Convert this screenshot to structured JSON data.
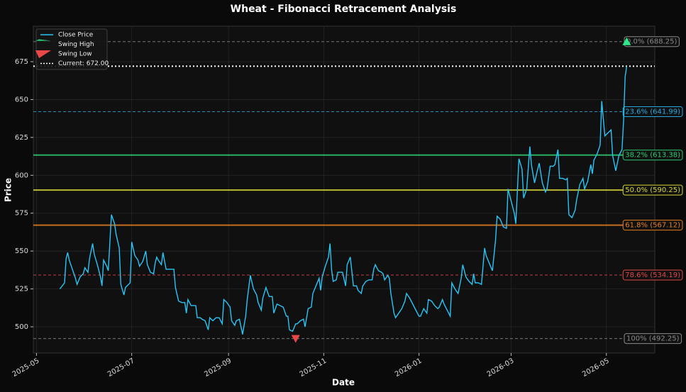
{
  "chart_data": {
    "type": "line",
    "title": "Wheat - Fibonacci Retracement Analysis",
    "x_label": "Date",
    "y_label": "Price",
    "x": [
      20224,
      20227,
      20228,
      20229,
      20230,
      20232,
      20234,
      20235,
      20237,
      20239,
      20240,
      20242,
      20243,
      20245,
      20246,
      20248,
      20250,
      20251,
      20252,
      20254,
      20255,
      20257,
      20259,
      20260,
      20262,
      20263,
      20265,
      20266,
      20269,
      20270,
      20272,
      20274,
      20275,
      20277,
      20279,
      20280,
      20282,
      20284,
      20285,
      20286,
      20287,
      20289,
      20290,
      20292,
      20295,
      20297,
      20298,
      20300,
      20302,
      20304,
      20305,
      20306,
      20308,
      20311,
      20312,
      20314,
      20315,
      20317,
      20319,
      20320,
      20322,
      20324,
      20326,
      20328,
      20329,
      20331,
      20333,
      20334,
      20336,
      20337,
      20339,
      20341,
      20343,
      20344,
      20346,
      20348,
      20350,
      20351,
      20353,
      20354,
      20356,
      20358,
      20360,
      20361,
      20363,
      20365,
      20367,
      20369,
      20370,
      20371,
      20373,
      20375,
      20376,
      20378,
      20380,
      20381,
      20383,
      20385,
      20386,
      20388,
      20390,
      20391,
      20392,
      20394,
      20396,
      20397,
      20398,
      20399,
      20401,
      20402,
      20404,
      20405,
      20407,
      20408,
      20410,
      20412,
      20414,
      20415,
      20417,
      20418,
      20420,
      20422,
      20424,
      20425,
      20426,
      20428,
      20430,
      20431,
      20432,
      20434,
      20435,
      20436,
      20438,
      20439,
      20441,
      20443,
      20445,
      20446,
      20448,
      20450,
      20452,
      20454,
      20455,
      20457,
      20459,
      20460,
      20462,
      20464,
      20466,
      20467,
      20469,
      20470,
      20472,
      20474,
      20475,
      20477,
      20479,
      20481,
      20482,
      20484,
      20486,
      20488,
      20489,
      20490,
      20492,
      20494,
      20496,
      20497,
      20499,
      20501,
      20503,
      20504,
      20506,
      20508,
      20510,
      20511,
      20513,
      20515,
      20516,
      20518,
      20520,
      20521,
      20523,
      20525,
      20526,
      20528,
      20530,
      20531,
      20533,
      20535,
      20536,
      20538,
      20540,
      20541,
      20543,
      20544,
      20546,
      20548,
      20549,
      20550,
      20552,
      20554,
      20555,
      20557,
      20559,
      20560,
      20562,
      20564,
      20565,
      20566,
      20568,
      20570,
      20571,
      20573,
      20575,
      20577,
      20578,
      20580,
      20582,
      20584,
      20585,
      20586,
      20587
    ],
    "series": [
      {
        "name": "Close Price",
        "color": "#29c5f6",
        "values": [
          525,
          529,
          545,
          549,
          544,
          538,
          532,
          528,
          533,
          535,
          539,
          536,
          545,
          555,
          548,
          541,
          533,
          527,
          544,
          540,
          537,
          574,
          568,
          561,
          552,
          528,
          521,
          526,
          529,
          556,
          547,
          544,
          540,
          543,
          550,
          541,
          536,
          535,
          542,
          546,
          544,
          541,
          549,
          538,
          538,
          538,
          526,
          517,
          516,
          516,
          509,
          518,
          514,
          514,
          506,
          506,
          505,
          504,
          498,
          506,
          504,
          506,
          506,
          502,
          518,
          516,
          513,
          504,
          501,
          504,
          505,
          495,
          507,
          518,
          534,
          525,
          521,
          516,
          511,
          519,
          526,
          520,
          520,
          509,
          515,
          514,
          513,
          507,
          507,
          498,
          497,
          502,
          502,
          504,
          505,
          500,
          512,
          513,
          522,
          527,
          532,
          524,
          533,
          540,
          546,
          555,
          538,
          530,
          531,
          536,
          536,
          536,
          527,
          541,
          546,
          527,
          527,
          524,
          522,
          527,
          530,
          531,
          531,
          538,
          541,
          537,
          536,
          535,
          531,
          534,
          532,
          522,
          509,
          506,
          509,
          512,
          517,
          522,
          519,
          515,
          511,
          507,
          507,
          512,
          509,
          518,
          517,
          514,
          512,
          513,
          518,
          515,
          511,
          507,
          529,
          525,
          522,
          532,
          541,
          533,
          530,
          528,
          535,
          529,
          529,
          528,
          552,
          547,
          542,
          537,
          557,
          573,
          571,
          566,
          565,
          591,
          583,
          575,
          568,
          611,
          604,
          585,
          591,
          619,
          607,
          595,
          604,
          608,
          595,
          589,
          591,
          606,
          606,
          607,
          617,
          598,
          598,
          597,
          598,
          574,
          572,
          577,
          584,
          594,
          598,
          591,
          596,
          607,
          601,
          610,
          614,
          620,
          649,
          626,
          628,
          630,
          613,
          603,
          613,
          617,
          636,
          665,
          672
        ]
      }
    ],
    "xlim": [
      20207,
      20605
    ],
    "ylim": [
      482.7,
      698.4
    ],
    "xticks": [
      {
        "value": 20209,
        "label": "2025-05"
      },
      {
        "value": 20270,
        "label": "2025-07"
      },
      {
        "value": 20332,
        "label": "2025-09"
      },
      {
        "value": 20393,
        "label": "2025-11"
      },
      {
        "value": 20454,
        "label": "2026-01"
      },
      {
        "value": 20513,
        "label": "2026-03"
      },
      {
        "value": 20574,
        "label": "2026-05"
      }
    ],
    "yticks": [
      500,
      525,
      550,
      575,
      600,
      625,
      650,
      675
    ],
    "grid": true,
    "legend": "upper left",
    "levels": [
      {
        "label": "0.0% (688.25)",
        "value": 688.25,
        "color": "#8a8a8a",
        "style": "dashed"
      },
      {
        "label": "23.6% (641.99)",
        "value": 641.99,
        "color": "#29a8e0",
        "style": "dashed"
      },
      {
        "label": "38.2% (613.38)",
        "value": 613.38,
        "color": "#2ecc71",
        "style": "solid"
      },
      {
        "label": "50.0% (590.25)",
        "value": 590.25,
        "color": "#d6d63a",
        "style": "solid"
      },
      {
        "label": "61.8% (567.12)",
        "value": 567.12,
        "color": "#e67e22",
        "style": "solid"
      },
      {
        "label": "78.6% (534.19)",
        "value": 534.19,
        "color": "#e04848",
        "style": "dashed"
      },
      {
        "label": "100% (492.25)",
        "value": 492.25,
        "color": "#8a8a8a",
        "style": "dashed"
      }
    ],
    "current": {
      "name": "Current: 672.00",
      "value": 672,
      "color": "#ffffff"
    },
    "swing_high": {
      "name": "Swing High",
      "x": 20587,
      "y": 688.25,
      "color": "#2ee88a"
    },
    "swing_low": {
      "name": "Swing Low",
      "x": 20375,
      "y": 492.25,
      "color": "#e84848"
    }
  }
}
